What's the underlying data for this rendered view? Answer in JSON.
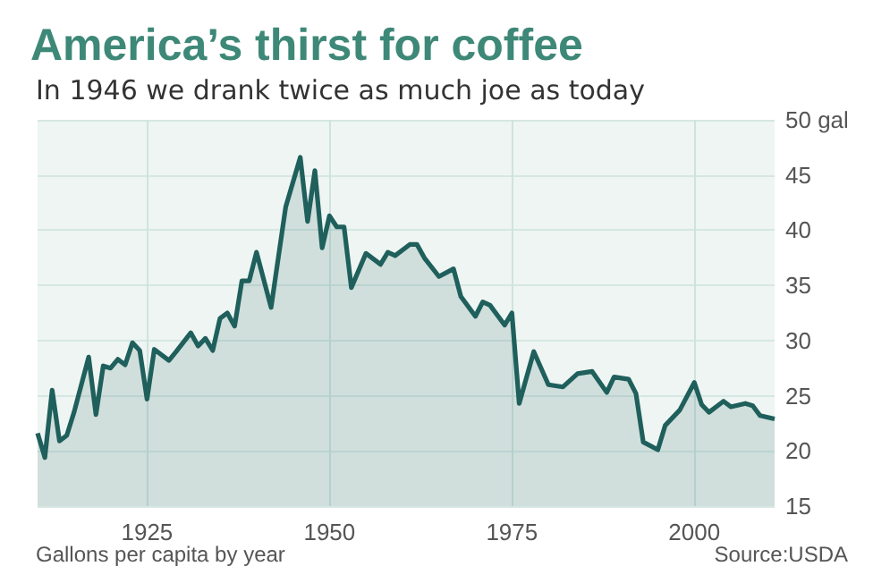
{
  "chart_data": {
    "type": "area",
    "title": "America’s thirst for coffee",
    "subtitle": "In 1946 we drank twice as much joe as today",
    "x": [
      1910,
      1911,
      1912,
      1913,
      1914,
      1915,
      1917,
      1918,
      1919,
      1920,
      1921,
      1922,
      1923,
      1924,
      1925,
      1926,
      1928,
      1929,
      1931,
      1932,
      1933,
      1934,
      1935,
      1936,
      1937,
      1938,
      1939,
      1940,
      1942,
      1944,
      1946,
      1947,
      1948,
      1949,
      1950,
      1951,
      1952,
      1953,
      1955,
      1957,
      1958,
      1959,
      1961,
      1962,
      1963,
      1965,
      1967,
      1968,
      1970,
      1971,
      1972,
      1974,
      1975,
      1976,
      1978,
      1980,
      1982,
      1984,
      1986,
      1988,
      1989,
      1991,
      1992,
      1993,
      1995,
      1996,
      1998,
      2000,
      2001,
      2002,
      2004,
      2005,
      2007,
      2008,
      2009,
      2011
    ],
    "series": [
      {
        "color": "#1f5f5c",
        "values": [
          21.6,
          19.4,
          25.5,
          20.9,
          21.4,
          23.5,
          28.5,
          23.3,
          27.7,
          27.5,
          28.3,
          27.8,
          29.8,
          29.1,
          24.7,
          29.2,
          28.2,
          29.0,
          30.7,
          29.5,
          30.2,
          29.1,
          32.0,
          32.5,
          31.3,
          35.4,
          35.4,
          38.0,
          33.0,
          42.1,
          46.6,
          40.8,
          45.4,
          38.4,
          41.3,
          40.3,
          40.3,
          34.8,
          37.9,
          36.9,
          38.0,
          37.7,
          38.7,
          38.7,
          37.5,
          35.8,
          36.5,
          34.0,
          32.2,
          33.5,
          33.2,
          31.4,
          32.5,
          24.3,
          29.0,
          26.0,
          25.8,
          27.0,
          27.2,
          25.3,
          26.7,
          26.5,
          25.2,
          20.8,
          20.1,
          22.3,
          23.7,
          26.2,
          24.2,
          23.5,
          24.5,
          24.0,
          24.3,
          24.1,
          23.2,
          22.9
        ]
      }
    ],
    "xlim": [
      1910,
      2011
    ],
    "xticks": [
      1925,
      1950,
      1975,
      2000
    ],
    "ylim": [
      15,
      50
    ],
    "yticks": [
      15,
      20,
      25,
      30,
      35,
      40,
      45,
      {
        "value": 50,
        "label": "50 gal"
      }
    ],
    "grid": true,
    "annotations": [
      "Gallons per capita by year",
      "Source:USDA"
    ]
  }
}
